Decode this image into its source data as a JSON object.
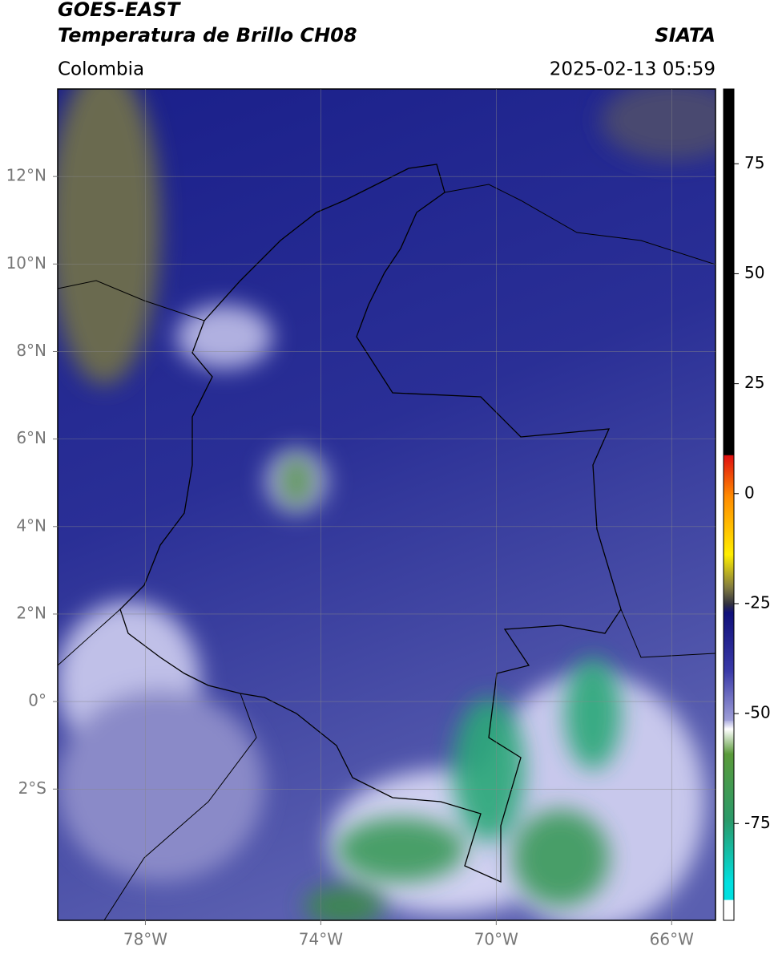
{
  "header": {
    "title": "GOES-EAST",
    "subtitle": "Temperatura de Brillo CH08",
    "source": "SIATA",
    "region": "Colombia",
    "timestamp": "2025-02-13 05:59"
  },
  "map": {
    "xlim": [
      -80,
      -65
    ],
    "ylim": [
      -5,
      14
    ],
    "xticks": [
      {
        "value": -78,
        "label": "78°W"
      },
      {
        "value": -74,
        "label": "74°W"
      },
      {
        "value": -70,
        "label": "70°W"
      },
      {
        "value": -66,
        "label": "66°W"
      }
    ],
    "yticks": [
      {
        "value": 12,
        "label": "12°N"
      },
      {
        "value": 10,
        "label": "10°N"
      },
      {
        "value": 8,
        "label": "8°N"
      },
      {
        "value": 6,
        "label": "6°N"
      },
      {
        "value": 4,
        "label": "4°N"
      },
      {
        "value": 2,
        "label": "2°N"
      },
      {
        "value": 0,
        "label": "0°"
      },
      {
        "value": -2,
        "label": "2°S"
      }
    ],
    "grid": true
  },
  "colorbar": {
    "lim": [
      -97,
      92
    ],
    "ticks": [
      75,
      50,
      25,
      0,
      -25,
      -50,
      -75
    ]
  }
}
